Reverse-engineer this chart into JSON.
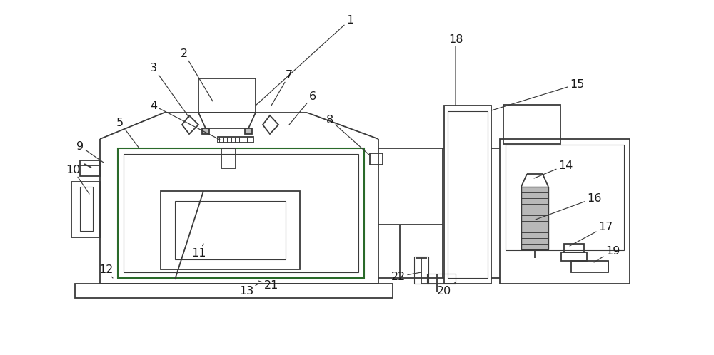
{
  "bg_color": "#ffffff",
  "line_color": "#3a3a3a",
  "label_color": "#1a1a1a",
  "label_fontsize": 11.5,
  "lw": 1.3,
  "figsize": [
    10.0,
    4.98
  ],
  "dpi": 100,
  "label_defs": [
    [
      1,
      490,
      28,
      358,
      148
    ],
    [
      2,
      258,
      75,
      298,
      142
    ],
    [
      3,
      215,
      95,
      265,
      165
    ],
    [
      4,
      215,
      148,
      308,
      196
    ],
    [
      5,
      168,
      172,
      195,
      208
    ],
    [
      6,
      438,
      135,
      405,
      175
    ],
    [
      7,
      405,
      105,
      380,
      148
    ],
    [
      8,
      462,
      168,
      518,
      218
    ],
    [
      9,
      112,
      205,
      145,
      228
    ],
    [
      10,
      102,
      238,
      125,
      272
    ],
    [
      11,
      278,
      355,
      285,
      342
    ],
    [
      12,
      148,
      378,
      158,
      390
    ],
    [
      13,
      345,
      408,
      362,
      398
    ],
    [
      14,
      792,
      232,
      748,
      250
    ],
    [
      15,
      808,
      118,
      688,
      155
    ],
    [
      16,
      832,
      278,
      750,
      308
    ],
    [
      17,
      848,
      318,
      798,
      345
    ],
    [
      18,
      638,
      55,
      638,
      148
    ],
    [
      19,
      858,
      352,
      832,
      368
    ],
    [
      20,
      622,
      408,
      638,
      396
    ],
    [
      21,
      380,
      400,
      362,
      394
    ],
    [
      22,
      558,
      388,
      590,
      382
    ]
  ]
}
